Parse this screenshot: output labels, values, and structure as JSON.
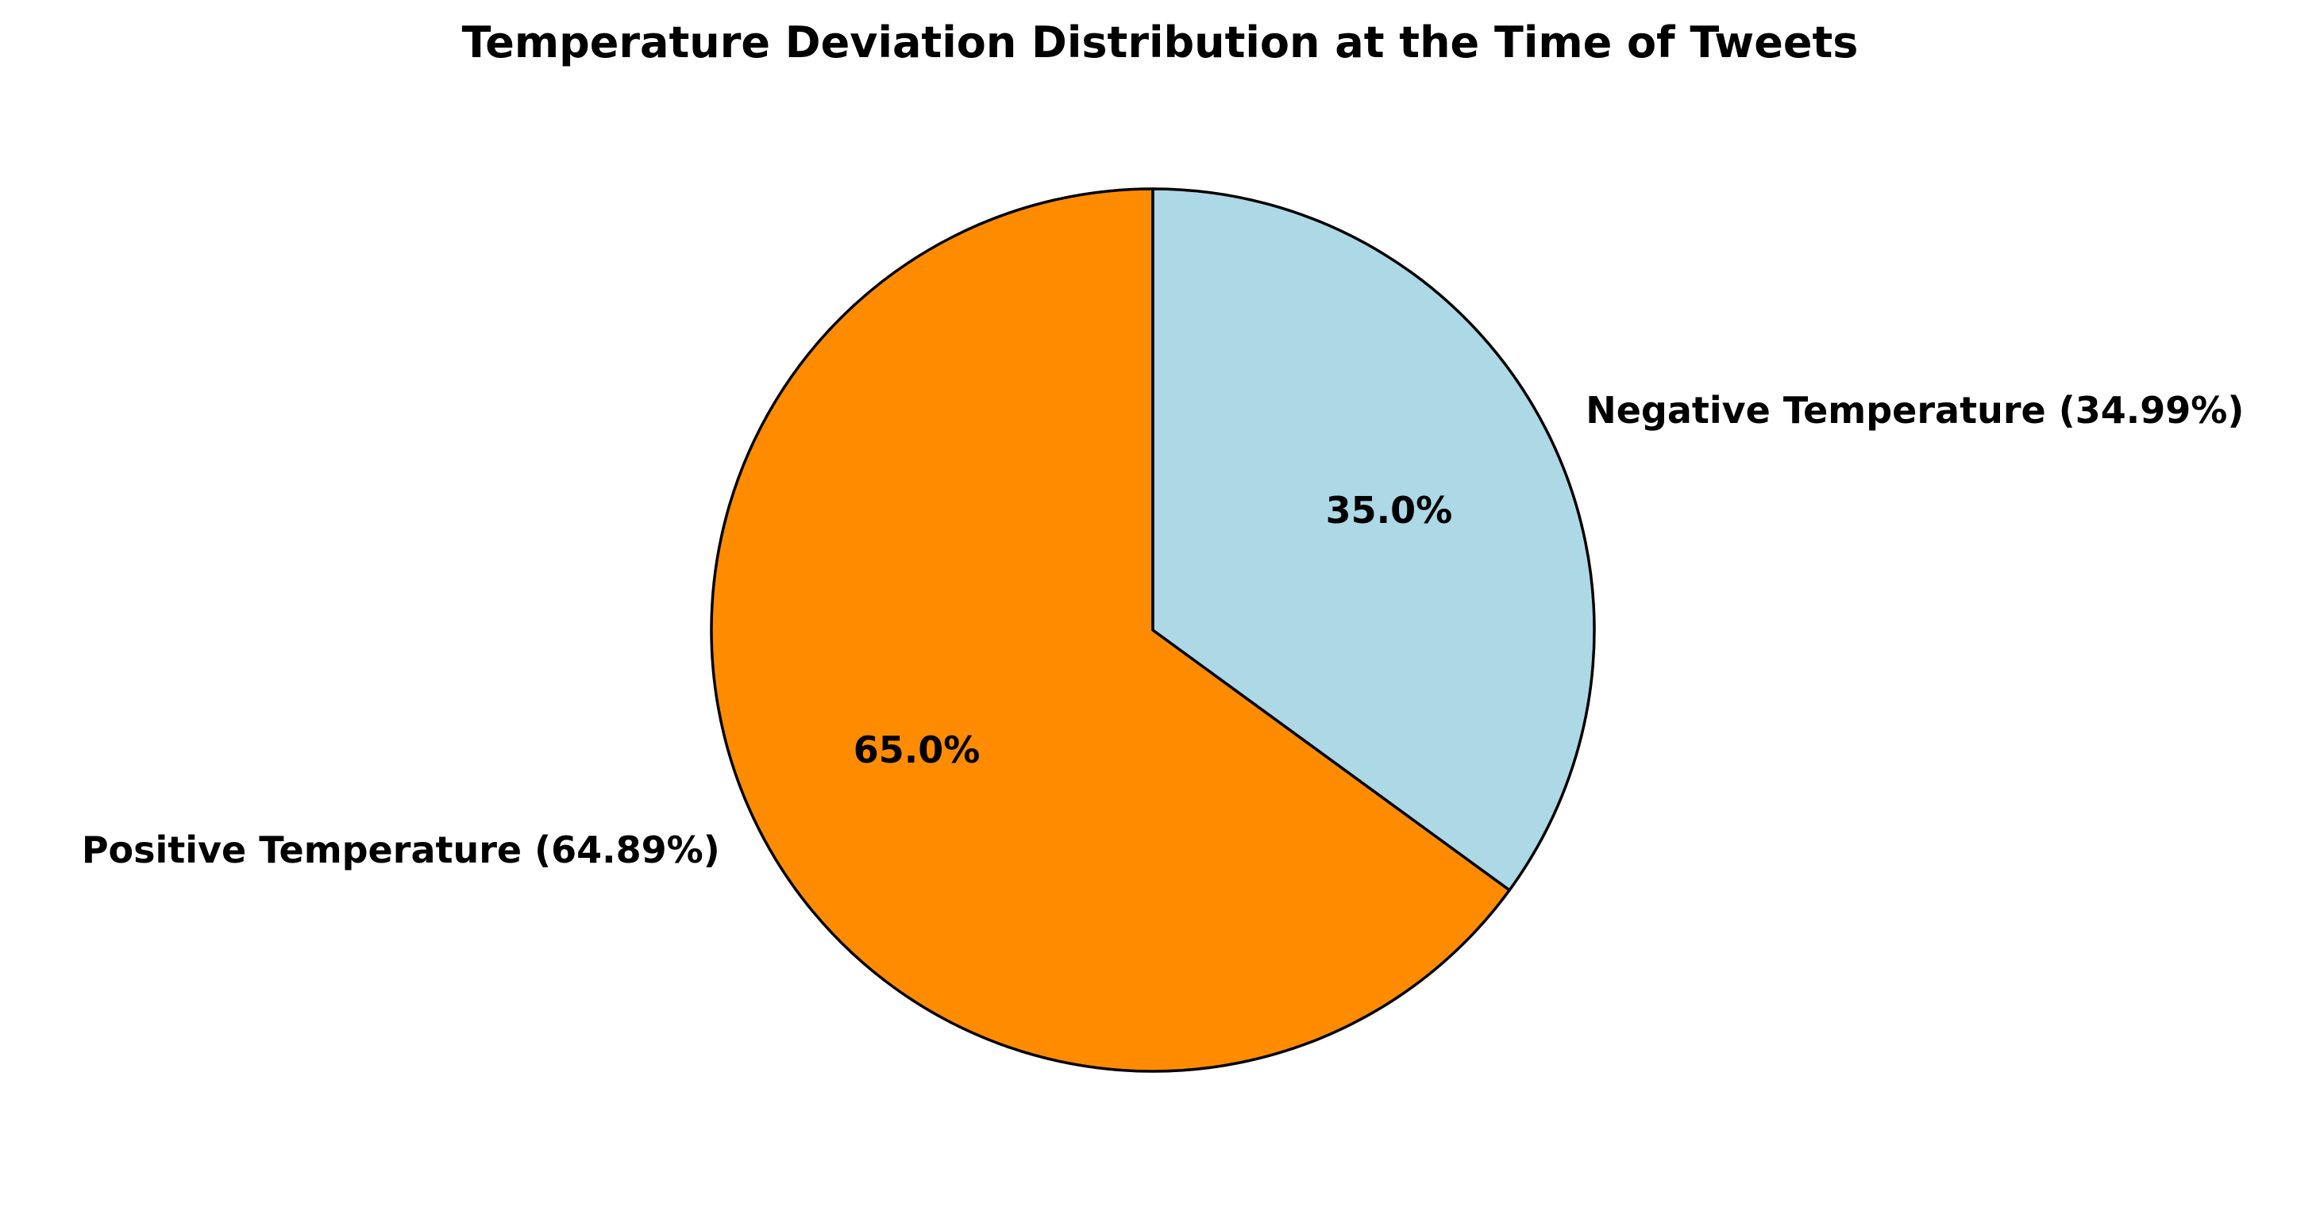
{
  "chart_data": {
    "type": "pie",
    "title": "Temperature Deviation Distribution at the Time of Tweets",
    "start_angle_deg": 90,
    "direction": "counterclockwise",
    "slices": [
      {
        "label": "Positive Temperature (64.89%)",
        "value": 64.89,
        "pct_label": "65.0%",
        "color": "#FF8C00"
      },
      {
        "label": "Negative Temperature (34.99%)",
        "value": 34.99,
        "pct_label": "35.0%",
        "color": "#ADD8E6"
      }
    ],
    "edge_color": "#000000"
  }
}
